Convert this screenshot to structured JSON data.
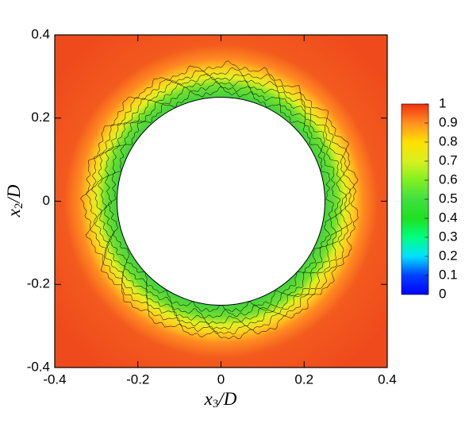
{
  "chart_data": {
    "type": "contour",
    "x_label": {
      "symbol": "x",
      "subscript": "3",
      "rest": "/D"
    },
    "y_label": {
      "symbol": "x",
      "subscript": "2",
      "rest": "/D"
    },
    "xlim": [
      -0.4,
      0.4
    ],
    "ylim": [
      -0.4,
      0.4
    ],
    "xticks": [
      -0.4,
      -0.2,
      0,
      0.2,
      0.4
    ],
    "yticks": [
      -0.4,
      -0.2,
      0,
      0.2,
      0.4
    ],
    "colorbar": {
      "levels": [
        0,
        0.1,
        0.2,
        0.3,
        0.4,
        0.5,
        0.6,
        0.7,
        0.8,
        0.9,
        1
      ],
      "colors": [
        "#0000ff",
        "#0040ff",
        "#00e0ff",
        "#00ff80",
        "#20e020",
        "#40e040",
        "#80f020",
        "#d8f020",
        "#ffe000",
        "#ff9020",
        "#f03010"
      ]
    }
  }
}
